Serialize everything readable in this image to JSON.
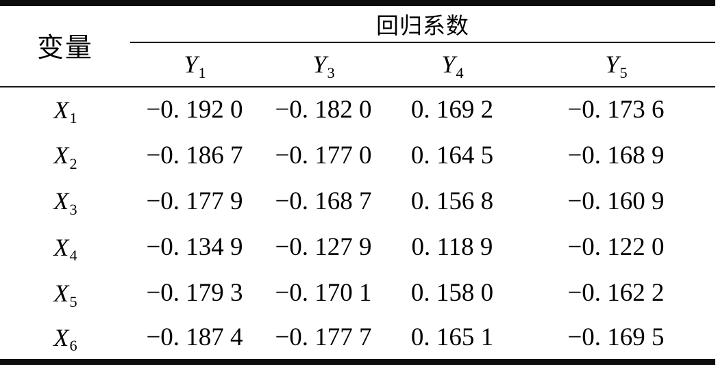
{
  "table": {
    "corner_header": "变量",
    "group_header": "回归系数",
    "columns": [
      {
        "base": "Y",
        "sub": "1"
      },
      {
        "base": "Y",
        "sub": "3"
      },
      {
        "base": "Y",
        "sub": "4"
      },
      {
        "base": "Y",
        "sub": "5"
      }
    ],
    "rows": [
      {
        "base": "X",
        "sub": "1",
        "values": [
          "−0. 192 0",
          "−0. 182 0",
          "0. 169 2",
          "−0. 173 6"
        ]
      },
      {
        "base": "X",
        "sub": "2",
        "values": [
          "−0. 186 7",
          "−0. 177 0",
          "0. 164 5",
          "−0. 168 9"
        ]
      },
      {
        "base": "X",
        "sub": "3",
        "values": [
          "−0. 177 9",
          "−0. 168 7",
          "0. 156 8",
          "−0. 160 9"
        ]
      },
      {
        "base": "X",
        "sub": "4",
        "values": [
          "−0. 134 9",
          "−0. 127 9",
          "0. 118 9",
          "−0. 122 0"
        ]
      },
      {
        "base": "X",
        "sub": "5",
        "values": [
          "−0. 179 3",
          "−0. 170 1",
          "0. 158 0",
          "−0. 162 2"
        ]
      },
      {
        "base": "X",
        "sub": "6",
        "values": [
          "−0. 187 4",
          "−0. 177 7",
          "0. 165 1",
          "−0. 169 5"
        ]
      }
    ],
    "colors": {
      "text": "#000000",
      "background": "#ffffff",
      "rule": "#0d0d0d"
    }
  }
}
